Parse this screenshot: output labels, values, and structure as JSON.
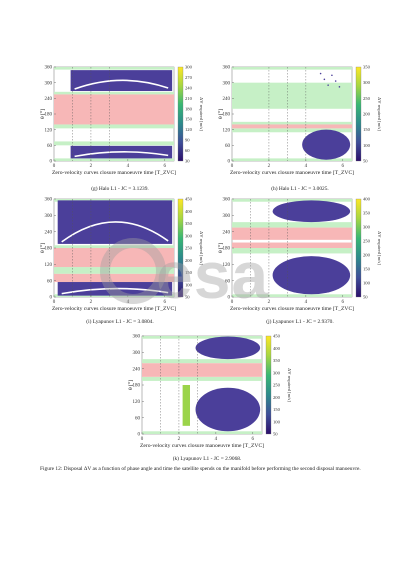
{
  "panels": [
    {
      "id": "g",
      "caption": "(g) Halo L1 - JC = 3.1239.",
      "xlabel": "Zero-velocity curves closure manoeuvre time [T_ZVC]",
      "ylabel": "θ [°]",
      "cblabel": "ΔV required [m/s]",
      "yticks": [
        "0",
        "60",
        "120",
        "180",
        "240",
        "300",
        "360"
      ],
      "xticks": [
        "0",
        "2",
        "4",
        "6"
      ],
      "cbticks": [
        "30",
        "60",
        "90",
        "120",
        "150",
        "180",
        "210",
        "240",
        "270",
        "300"
      ],
      "red_bands": [
        [
          140,
          255
        ]
      ],
      "green_bands": [
        [
          0,
          10
        ],
        [
          60,
          75
        ],
        [
          125,
          140
        ],
        [
          255,
          265
        ],
        [
          350,
          360
        ]
      ],
      "dashed_x": [
        1,
        2,
        3
      ],
      "blobs": [
        {
          "x0": 0.9,
          "x1": 6.4,
          "y0": 268,
          "y1": 348,
          "shape": "rect"
        },
        {
          "x0": 0.9,
          "x1": 6.4,
          "y0": 10,
          "y1": 58,
          "shape": "rect"
        }
      ]
    },
    {
      "id": "h",
      "caption": "(h) Halo L1 - JC = 3.0025.",
      "xlabel": "Zero-velocity curves closure manoeuvre time [T_ZVC]",
      "ylabel": "θ [°]",
      "cblabel": "ΔV required [m/s]",
      "yticks": [
        "0",
        "60",
        "120",
        "180",
        "240",
        "300",
        "360"
      ],
      "xticks": [
        "0",
        "2",
        "4",
        "6"
      ],
      "cbticks": [
        "50",
        "100",
        "150",
        "200",
        "250",
        "300",
        "350"
      ],
      "red_bands": [
        [
          125,
          140
        ]
      ],
      "green_bands": [
        [
          0,
          10
        ],
        [
          110,
          125
        ],
        [
          140,
          150
        ],
        [
          200,
          300
        ],
        [
          350,
          360
        ]
      ],
      "dashed_x": [
        2,
        3,
        4
      ],
      "blobs": [
        {
          "x0": 3.8,
          "x1": 6.4,
          "y0": 5,
          "y1": 120,
          "shape": "ellipse"
        },
        {
          "x0": 4.8,
          "x1": 6.0,
          "y0": 275,
          "y1": 335,
          "shape": "sparse"
        }
      ]
    },
    {
      "id": "i",
      "caption": "(i) Lyapunov L1 - JC = 3.0804.",
      "xlabel": "Zero-velocity curves closure manoeuvre time [T_ZVC]",
      "ylabel": "θ [°]",
      "cblabel": "ΔV required [m/s]",
      "yticks": [
        "0",
        "60",
        "120",
        "180",
        "240",
        "300",
        "360"
      ],
      "xticks": [
        "0",
        "2",
        "4",
        "6"
      ],
      "cbticks": [
        "50",
        "100",
        "150",
        "200",
        "250",
        "300",
        "350",
        "400",
        "450"
      ],
      "red_bands": [
        [
          110,
          180
        ],
        [
          55,
          85
        ]
      ],
      "green_bands": [
        [
          0,
          10
        ],
        [
          85,
          110
        ],
        [
          180,
          190
        ],
        [
          350,
          360
        ]
      ],
      "dashed_x": [
        1,
        2,
        3
      ],
      "blobs": [
        {
          "x0": 0.2,
          "x1": 6.4,
          "y0": 195,
          "y1": 355,
          "shape": "rect"
        },
        {
          "x0": 0.2,
          "x1": 6.4,
          "y0": 5,
          "y1": 55,
          "shape": "rect"
        }
      ]
    },
    {
      "id": "j",
      "caption": "(j) Lyapunov L1 - JC = 2.9370.",
      "xlabel": "Zero-velocity curves closure manoeuvre time [T_ZVC]",
      "ylabel": "θ [°]",
      "cblabel": "ΔV required [m/s]",
      "yticks": [
        "0",
        "60",
        "120",
        "180",
        "240",
        "300",
        "360"
      ],
      "xticks": [
        "0",
        "2",
        "4",
        "6"
      ],
      "cbticks": [
        "50",
        "100",
        "150",
        "200",
        "250",
        "300",
        "350",
        "400"
      ],
      "red_bands": [
        [
          210,
          255
        ],
        [
          180,
          200
        ]
      ],
      "green_bands": [
        [
          0,
          10
        ],
        [
          160,
          180
        ],
        [
          255,
          275
        ],
        [
          350,
          360
        ]
      ],
      "dashed_x": [
        1,
        2,
        3
      ],
      "blobs": [
        {
          "x0": 2.2,
          "x1": 6.4,
          "y0": 275,
          "y1": 355,
          "shape": "ellipse"
        },
        {
          "x0": 2.2,
          "x1": 6.4,
          "y0": 10,
          "y1": 150,
          "shape": "ellipse"
        }
      ]
    },
    {
      "id": "k",
      "caption": "(k) Lyapunov L1 - JC = 2.9068.",
      "xlabel": "Zero-velocity curves closure manoeuvre time [T_ZVC]",
      "ylabel": "θ [°]",
      "cblabel": "ΔV required [m/s]",
      "yticks": [
        "0",
        "60",
        "120",
        "180",
        "240",
        "300",
        "360"
      ],
      "xticks": [
        "0",
        "2",
        "4",
        "6"
      ],
      "cbticks": [
        "50",
        "100",
        "150",
        "200",
        "250",
        "300",
        "350",
        "400",
        "450"
      ],
      "red_bands": [
        [
          210,
          260
        ]
      ],
      "green_bands": [
        [
          0,
          10
        ],
        [
          195,
          210
        ],
        [
          260,
          275
        ],
        [
          350,
          360
        ]
      ],
      "dashed_x": [
        1,
        2,
        3
      ],
      "blobs": [
        {
          "x0": 2.9,
          "x1": 6.4,
          "y0": 275,
          "y1": 358,
          "shape": "ellipse"
        },
        {
          "x0": 2.9,
          "x1": 6.4,
          "y0": 10,
          "y1": 170,
          "shape": "ellipse"
        },
        {
          "x0": 2.2,
          "x1": 2.6,
          "y0": 30,
          "y1": 180,
          "shape": "stripe"
        }
      ]
    }
  ],
  "figure_caption": "Figure 12: Disposal ΔV as a function of phase angle and time the satellite spends on the manifold before performing the second disposal manoeuvre.",
  "watermark": "esa",
  "colors": {
    "red_band": "#f7b7b7",
    "green_band": "#c6f0c6",
    "blob": "#4b3f9a",
    "colorbar_stops": [
      "#2c0f6b",
      "#3e4e98",
      "#2d8a8b",
      "#38b774",
      "#a7d642",
      "#fde725"
    ]
  }
}
